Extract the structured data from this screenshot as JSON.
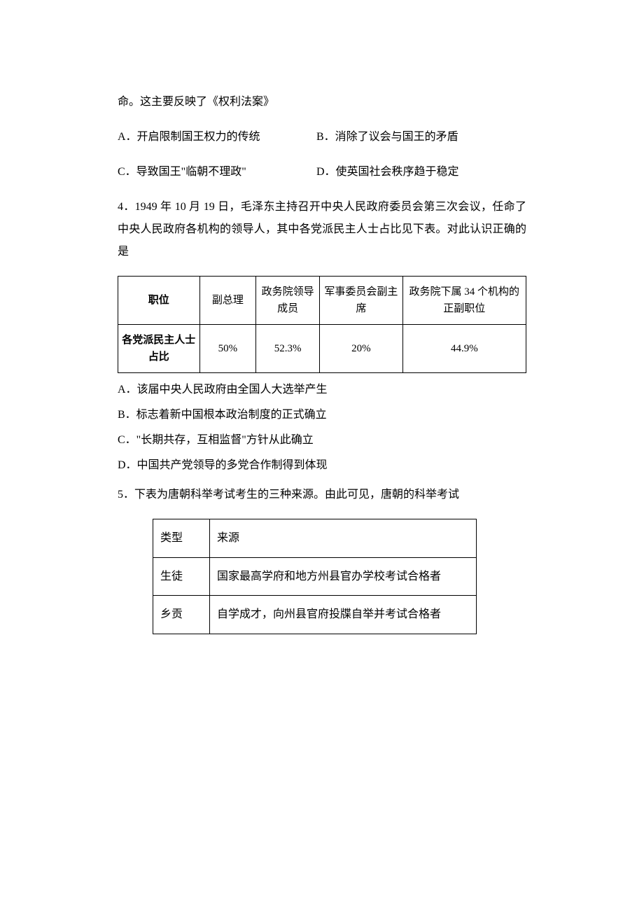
{
  "q3": {
    "stem_cont": "命。这主要反映了《权利法案》",
    "optA": "A．开启限制国王权力的传统",
    "optB": "B．消除了议会与国王的矛盾",
    "optC": "C．导致国王\"临朝不理政\"",
    "optD": "D．使英国社会秩序趋于稳定"
  },
  "q4": {
    "stem": "4．1949 年 10 月 19 日，毛泽东主持召开中央人民政府委员会第三次会议，任命了中央人民政府各机构的领导人，其中各党派民主人士占比见下表。对此认识正确的是",
    "table": {
      "headers": [
        "职位",
        "副总理",
        "政务院领导成员",
        "军事委员会副主席",
        "政务院下属 34 个机构的正副职位"
      ],
      "row_label": "各党派民主人士占比",
      "values": [
        "50%",
        "52.3%",
        "20%",
        "44.9%"
      ]
    },
    "optA": "A．该届中央人民政府由全国人大选举产生",
    "optB": "B．标志着新中国根本政治制度的正式确立",
    "optC": "C．\"长期共存，互相监督\"方针从此确立",
    "optD": "D．中国共产党领导的多党合作制得到体现"
  },
  "q5": {
    "stem": "5．下表为唐朝科举考试考生的三种来源。由此可见，唐朝的科举考试",
    "table": {
      "headers": [
        "类型",
        "来源"
      ],
      "rows": [
        [
          "生徒",
          "国家最高学府和地方州县官办学校考试合格者"
        ],
        [
          "乡贡",
          "自学成才，向州县官府投牒自举并考试合格者"
        ]
      ]
    }
  }
}
